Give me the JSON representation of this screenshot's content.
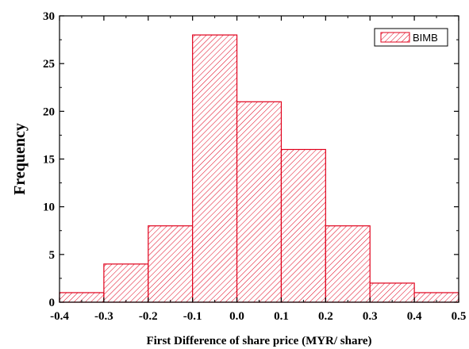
{
  "chart_data": {
    "type": "bar",
    "subtype": "histogram",
    "bin_edges": [
      -0.4,
      -0.3,
      -0.2,
      -0.1,
      0.0,
      0.1,
      0.2,
      0.3,
      0.4,
      0.5
    ],
    "series": [
      {
        "name": "BIMB",
        "values": [
          1,
          4,
          8,
          28,
          21,
          16,
          8,
          2,
          1
        ]
      }
    ],
    "xlabel": "First Difference of share price (MYR/ share)",
    "ylabel": "Frequency",
    "xlim": [
      -0.4,
      0.5
    ],
    "ylim": [
      0,
      30
    ],
    "xticks": [
      -0.4,
      -0.3,
      -0.2,
      -0.1,
      0.0,
      0.1,
      0.2,
      0.3,
      0.4,
      0.5
    ],
    "xtick_labels": [
      "-0.4",
      "-0.3",
      "-0.2",
      "-0.1",
      "0.0",
      "0.1",
      "0.2",
      "0.3",
      "0.4",
      "0.5"
    ],
    "yticks": [
      0,
      5,
      10,
      15,
      20,
      25,
      30
    ],
    "ytick_labels": [
      "0",
      "5",
      "10",
      "15",
      "20",
      "25",
      "30"
    ],
    "grid": false,
    "legend_position": "top-right",
    "bar_color": "#e0001b",
    "fill": "diagonal-hatch"
  }
}
